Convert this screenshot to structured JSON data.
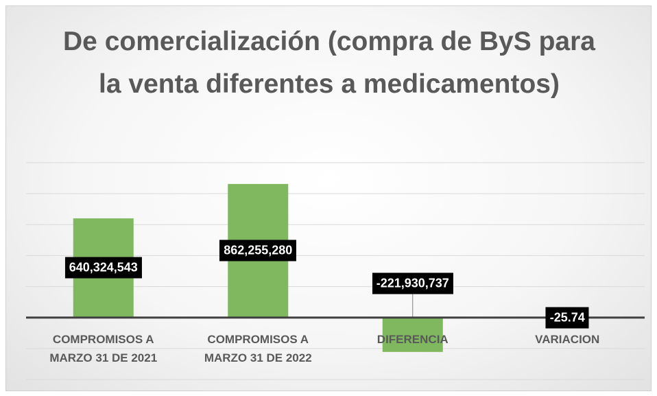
{
  "chart_data": {
    "type": "bar",
    "title": "De comercialización (compra de ByS para la venta diferentes a medicamentos)",
    "categories": [
      "COMPROMISOS A MARZO 31 DE 2021",
      "COMPROMISOS A MARZO 31 DE 2022",
      "DIFERENCIA",
      "VARIACION"
    ],
    "values": [
      640324543,
      862255280,
      -221930737,
      -25.74
    ],
    "value_labels": [
      "640,324,543",
      "862,255,280",
      "-221,930,737",
      "-25.74"
    ],
    "color": "#7fb85f",
    "ylim": [
      -400000000,
      1000000000
    ],
    "yticks": [
      -400000000,
      -200000000,
      0,
      200000000,
      400000000,
      600000000,
      800000000,
      1000000000
    ],
    "grid": true
  }
}
